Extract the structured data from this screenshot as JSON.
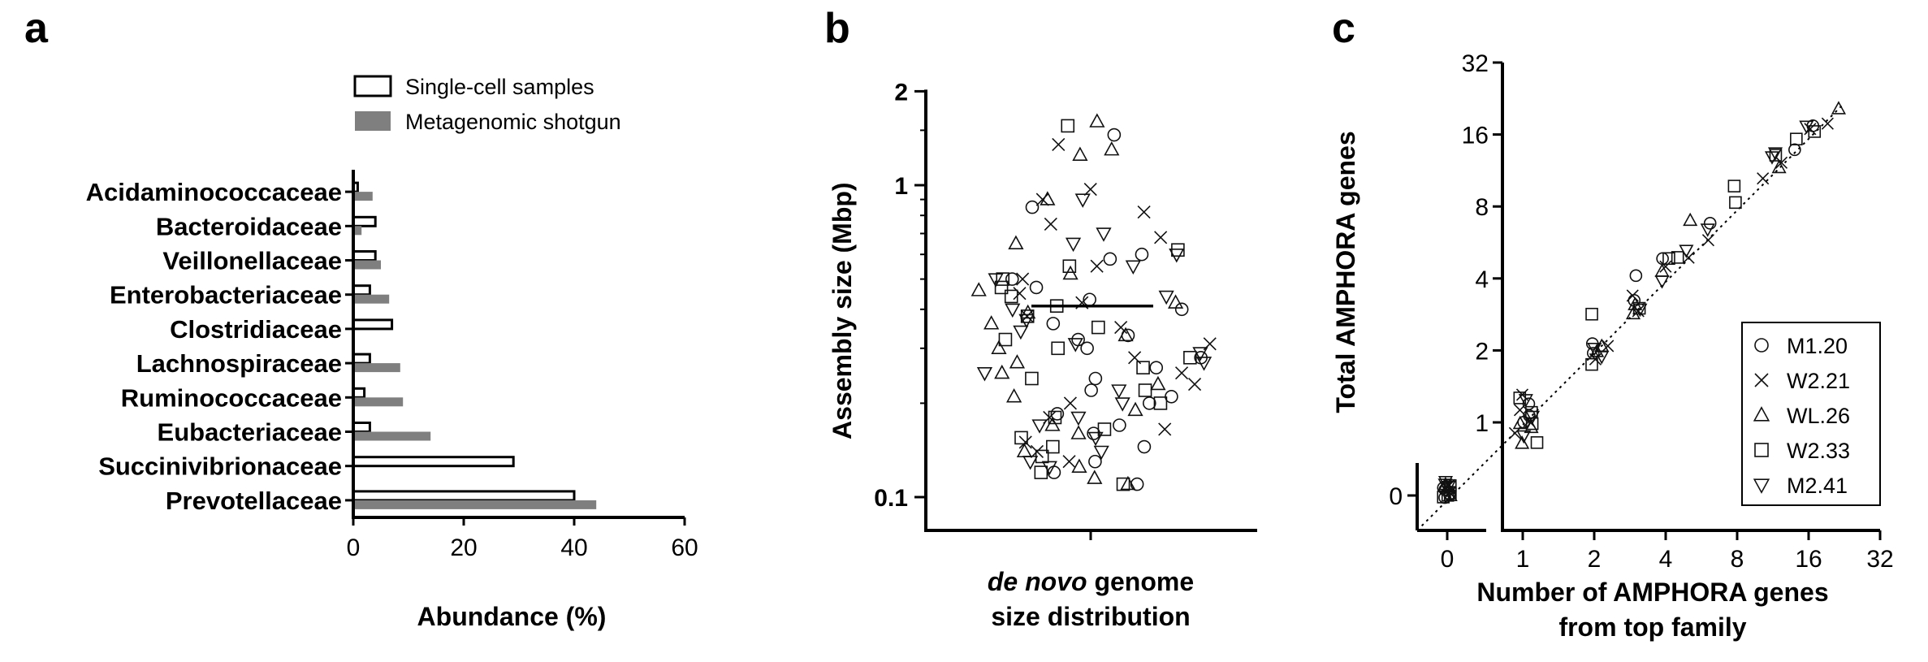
{
  "panels": {
    "a": "a",
    "b": "b",
    "c": "c"
  },
  "chart_data": [
    {
      "type": "bar",
      "orientation": "horizontal",
      "categories": [
        "Acidaminococcaceae",
        "Bacteroidaceae",
        "Veillonellaceae",
        "Enterobacteriaceae",
        "Clostridiaceae",
        "Lachnospiraceae",
        "Ruminococcaceae",
        "Eubacteriaceae",
        "Succinivibrionaceae",
        "Prevotellaceae"
      ],
      "series": [
        {
          "name": "Single-cell samples",
          "color": "#ffffff",
          "values": [
            0.8,
            4,
            4,
            3,
            7,
            3,
            2,
            3,
            29,
            40
          ]
        },
        {
          "name": "Metagenomic shotgun",
          "color": "#7f7f7f",
          "values": [
            3.5,
            1.5,
            5,
            6.5,
            0.2,
            8.5,
            9,
            14,
            0.3,
            44
          ]
        }
      ],
      "xlabel": "Abundance (%)",
      "xlim": [
        0,
        60
      ],
      "xticks": [
        "0",
        "20",
        "40",
        "60"
      ],
      "legend_position": "top-right"
    },
    {
      "type": "scatter",
      "ylabel": "Assembly size (Mbp)",
      "xlabel_parts": [
        "de novo",
        " genome"
      ],
      "xlabel_line2": "size distribution",
      "yscale": "log",
      "ylim": [
        0.085,
        2.0
      ],
      "yticks": [
        "0.1",
        "1",
        "2"
      ],
      "median": 0.41,
      "series": [
        {
          "name": "M1.20",
          "values": [
            1.45,
            0.85,
            0.6,
            0.5,
            0.47,
            0.43,
            0.4,
            0.36,
            0.33,
            0.3,
            0.28,
            0.26,
            0.24,
            0.22,
            0.2,
            0.185,
            0.17,
            0.16,
            0.145,
            0.13,
            0.12,
            0.11,
            0.58,
            0.32,
            0.21
          ]
        },
        {
          "name": "W2.21",
          "values": [
            1.35,
            0.97,
            0.9,
            0.82,
            0.75,
            0.68,
            0.55,
            0.5,
            0.45,
            0.42,
            0.38,
            0.35,
            0.31,
            0.28,
            0.25,
            0.23,
            0.2,
            0.18,
            0.165,
            0.15,
            0.14,
            0.13
          ]
        },
        {
          "name": "WL.26",
          "values": [
            1.6,
            1.3,
            1.25,
            0.9,
            0.65,
            0.52,
            0.46,
            0.42,
            0.39,
            0.36,
            0.33,
            0.3,
            0.27,
            0.25,
            0.23,
            0.21,
            0.19,
            0.17,
            0.16,
            0.14,
            0.125,
            0.115,
            0.11
          ]
        },
        {
          "name": "W2.33",
          "values": [
            1.55,
            0.62,
            0.55,
            0.5,
            0.47,
            0.44,
            0.41,
            0.38,
            0.35,
            0.32,
            0.3,
            0.28,
            0.26,
            0.24,
            0.22,
            0.2,
            0.18,
            0.165,
            0.155,
            0.145,
            0.135,
            0.12,
            0.11
          ]
        },
        {
          "name": "M2.41",
          "values": [
            0.9,
            0.7,
            0.65,
            0.6,
            0.55,
            0.5,
            0.44,
            0.4,
            0.37,
            0.34,
            0.31,
            0.29,
            0.27,
            0.25,
            0.22,
            0.2,
            0.18,
            0.17,
            0.155,
            0.14,
            0.13,
            0.125
          ]
        }
      ]
    },
    {
      "type": "scatter",
      "xlabel_line1": "Number of AMPHORA genes",
      "xlabel_line2": "from top family",
      "ylabel": "Total AMPHORA genes",
      "xscale": "log2 with zero break",
      "yscale": "log2 with zero break",
      "xticks": [
        "0",
        "1",
        "2",
        "4",
        "8",
        "16",
        "32"
      ],
      "yticks": [
        "0",
        "1",
        "2",
        "4",
        "8",
        "16",
        "32"
      ],
      "reference_line": "y = x",
      "legend_position": "bottom-right",
      "series": [
        {
          "name": "M1.20",
          "symbol": "circle",
          "points": [
            [
              0,
              0
            ],
            [
              0,
              0.1
            ],
            [
              0,
              0.2
            ],
            [
              0,
              0.15
            ],
            [
              1,
              1
            ],
            [
              1.05,
              1.1
            ],
            [
              1.1,
              1.2
            ],
            [
              2,
              2.1
            ],
            [
              2,
              1.9
            ],
            [
              3,
              4.2
            ],
            [
              3,
              3.2
            ],
            [
              4,
              5
            ],
            [
              6,
              7
            ],
            [
              14,
              14
            ],
            [
              17,
              17
            ]
          ]
        },
        {
          "name": "W2.21",
          "symbol": "x",
          "points": [
            [
              0,
              0.05
            ],
            [
              0,
              0.15
            ],
            [
              0,
              0.1
            ],
            [
              1,
              1.3
            ],
            [
              0.95,
              0.9
            ],
            [
              1,
              1.1
            ],
            [
              1.1,
              1.05
            ],
            [
              2,
              1.9
            ],
            [
              2.2,
              2.1
            ],
            [
              3,
              3.3
            ],
            [
              3,
              3.0
            ],
            [
              4,
              4.5
            ],
            [
              5,
              5
            ],
            [
              6,
              6
            ],
            [
              10,
              10.5
            ],
            [
              12,
              12
            ],
            [
              16,
              16.5
            ],
            [
              20,
              18
            ]
          ]
        },
        {
          "name": "WL.26",
          "symbol": "triangle",
          "points": [
            [
              0,
              0.3
            ],
            [
              0,
              0.15
            ],
            [
              0,
              0.05
            ],
            [
              1,
              0.8
            ],
            [
              1,
              1.0
            ],
            [
              1.1,
              0.95
            ],
            [
              2,
              2.0
            ],
            [
              2.1,
              2.1
            ],
            [
              3,
              2.8
            ],
            [
              3,
              3.1
            ],
            [
              5,
              7
            ],
            [
              4,
              4.2
            ],
            [
              12,
              12
            ],
            [
              22,
              20
            ]
          ]
        },
        {
          "name": "W2.33",
          "symbol": "square",
          "points": [
            [
              0,
              0.2
            ],
            [
              0,
              0.1
            ],
            [
              0,
              0.05
            ],
            [
              0,
              0.0
            ],
            [
              1,
              1.25
            ],
            [
              1.05,
              1.1
            ],
            [
              1.15,
              0.8
            ],
            [
              1.1,
              1.0
            ],
            [
              2,
              2.9
            ],
            [
              2,
              1.8
            ],
            [
              3,
              3.1
            ],
            [
              4,
              5
            ],
            [
              4.5,
              5
            ],
            [
              8,
              8
            ],
            [
              8,
              9.5
            ],
            [
              12,
              13
            ],
            [
              14,
              15
            ],
            [
              17,
              17
            ]
          ]
        },
        {
          "name": "M2.41",
          "symbol": "triangle-down",
          "points": [
            [
              0,
              0.25
            ],
            [
              0,
              0.3
            ],
            [
              0,
              0.1
            ],
            [
              0,
              0.2
            ],
            [
              1,
              1.2
            ],
            [
              1.1,
              1.05
            ],
            [
              1.05,
              0.9
            ],
            [
              2,
              2.0
            ],
            [
              2.1,
              1.95
            ],
            [
              3,
              3.0
            ],
            [
              4,
              4.0
            ],
            [
              5,
              5.1
            ],
            [
              6,
              6.2
            ],
            [
              11,
              13
            ],
            [
              12,
              13.5
            ],
            [
              16,
              17
            ]
          ]
        }
      ]
    }
  ]
}
